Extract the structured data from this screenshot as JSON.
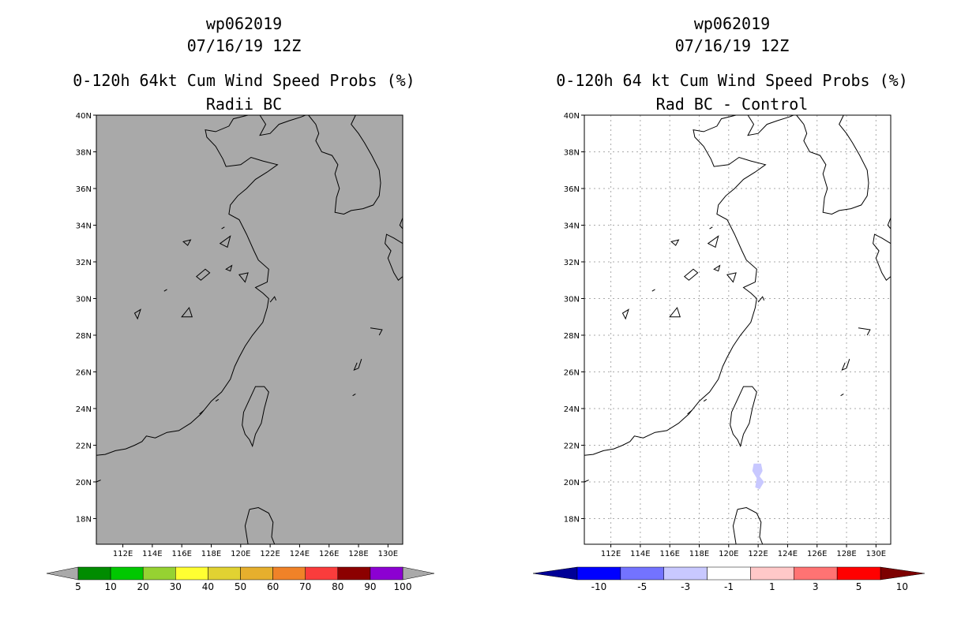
{
  "panels": [
    {
      "id": "left",
      "title_line1": "wp062019",
      "title_line2": "07/16/19 12Z",
      "title_line3": "0-120h 64kt Cum Wind Speed Probs (%)",
      "title_line4": "Radii BC",
      "map_background": "#a9a9a9",
      "colorbar": {
        "labels": [
          "5",
          "10",
          "20",
          "30",
          "40",
          "50",
          "60",
          "70",
          "80",
          "90",
          "100"
        ],
        "colors": [
          "#008c00",
          "#00c800",
          "#96d232",
          "#ffff32",
          "#e1d232",
          "#e6af2d",
          "#f08228",
          "#fa3c3c",
          "#8c0000",
          "#8c00d2"
        ],
        "end_colors": [
          "#a9a9a9",
          "#a9a9a9"
        ]
      }
    },
    {
      "id": "right",
      "title_line1": "wp062019",
      "title_line2": "07/16/19 12Z",
      "title_line3": "0-120h 64 kt Cum Wind Speed Probs (%)",
      "title_line4": "Rad BC - Control",
      "map_background": "#ffffff",
      "colorbar": {
        "labels": [
          "-10",
          "-5",
          "-3",
          "-1",
          "1",
          "3",
          "5",
          "10"
        ],
        "colors": [
          "#0000ff",
          "#7373ff",
          "#c8c8ff",
          "#ffffff",
          "#ffc8c8",
          "#ff7373",
          "#ff0000"
        ],
        "end_colors": [
          "#000096",
          "#7d0000"
        ]
      },
      "anomaly": {
        "value_range": "-3 to -1",
        "color": "#c8c8ff"
      }
    }
  ],
  "axes": {
    "lat_labels": [
      "18N",
      "20N",
      "22N",
      "24N",
      "26N",
      "28N",
      "30N",
      "32N",
      "34N",
      "36N",
      "38N",
      "40N"
    ],
    "lon_labels": [
      "112E",
      "114E",
      "116E",
      "118E",
      "120E",
      "122E",
      "124E",
      "126E",
      "128E",
      "130E"
    ],
    "lat_values": [
      18,
      20,
      22,
      24,
      26,
      28,
      30,
      32,
      34,
      36,
      38,
      40
    ],
    "lon_values": [
      112,
      114,
      116,
      118,
      120,
      122,
      124,
      126,
      128,
      130
    ],
    "lat_range": [
      16.6,
      40
    ],
    "lon_range": [
      110.2,
      131.0
    ]
  }
}
